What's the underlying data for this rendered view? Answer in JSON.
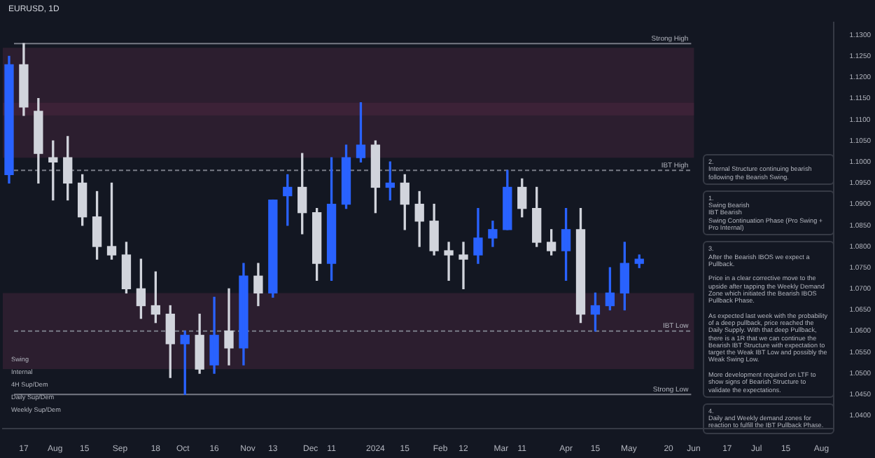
{
  "chart_data": {
    "type": "candlestick",
    "title": "EURUSD, 1D",
    "x": [
      "2023-07-10",
      "2023-07-17",
      "2023-07-24",
      "2023-07-31",
      "2023-08-07",
      "2023-08-14",
      "2023-08-21",
      "2023-08-28",
      "2023-09-04",
      "2023-09-11",
      "2023-09-18",
      "2023-09-25",
      "2023-10-02",
      "2023-10-09",
      "2023-10-16",
      "2023-10-23",
      "2023-10-30",
      "2023-11-06",
      "2023-11-13",
      "2023-11-20",
      "2023-11-27",
      "2023-12-04",
      "2023-12-11",
      "2023-12-18",
      "2023-12-25",
      "2024-01-01",
      "2024-01-08",
      "2024-01-15",
      "2024-01-22",
      "2024-01-29",
      "2024-02-05",
      "2024-02-12",
      "2024-02-19",
      "2024-02-26",
      "2024-03-04",
      "2024-03-11",
      "2024-03-18",
      "2024-03-25",
      "2024-04-01",
      "2024-04-08",
      "2024-04-15",
      "2024-04-22",
      "2024-04-29",
      "2024-05-06"
    ],
    "ohlc": [
      [
        1.097,
        1.125,
        1.095,
        1.123
      ],
      [
        1.123,
        1.128,
        1.111,
        1.113
      ],
      [
        1.112,
        1.115,
        1.095,
        1.102
      ],
      [
        1.101,
        1.105,
        1.091,
        1.1
      ],
      [
        1.101,
        1.106,
        1.091,
        1.095
      ],
      [
        1.095,
        1.097,
        1.085,
        1.087
      ],
      [
        1.087,
        1.093,
        1.077,
        1.08
      ],
      [
        1.08,
        1.095,
        1.077,
        1.078
      ],
      [
        1.078,
        1.081,
        1.069,
        1.07
      ],
      [
        1.07,
        1.077,
        1.063,
        1.066
      ],
      [
        1.066,
        1.074,
        1.062,
        1.064
      ],
      [
        1.064,
        1.066,
        1.049,
        1.057
      ],
      [
        1.057,
        1.06,
        1.045,
        1.059
      ],
      [
        1.059,
        1.064,
        1.05,
        1.051
      ],
      [
        1.052,
        1.068,
        1.05,
        1.059
      ],
      [
        1.06,
        1.07,
        1.052,
        1.056
      ],
      [
        1.056,
        1.076,
        1.052,
        1.073
      ],
      [
        1.073,
        1.076,
        1.066,
        1.069
      ],
      [
        1.069,
        1.091,
        1.068,
        1.091
      ],
      [
        1.092,
        1.097,
        1.085,
        1.094
      ],
      [
        1.094,
        1.102,
        1.083,
        1.088
      ],
      [
        1.088,
        1.089,
        1.072,
        1.076
      ],
      [
        1.076,
        1.101,
        1.072,
        1.09
      ],
      [
        1.09,
        1.104,
        1.089,
        1.101
      ],
      [
        1.101,
        1.114,
        1.1,
        1.104
      ],
      [
        1.104,
        1.105,
        1.088,
        1.094
      ],
      [
        1.094,
        1.1,
        1.091,
        1.095
      ],
      [
        1.095,
        1.097,
        1.084,
        1.09
      ],
      [
        1.09,
        1.093,
        1.08,
        1.086
      ],
      [
        1.086,
        1.09,
        1.078,
        1.079
      ],
      [
        1.079,
        1.081,
        1.072,
        1.078
      ],
      [
        1.078,
        1.081,
        1.07,
        1.077
      ],
      [
        1.078,
        1.089,
        1.076,
        1.082
      ],
      [
        1.082,
        1.086,
        1.08,
        1.084
      ],
      [
        1.084,
        1.098,
        1.084,
        1.094
      ],
      [
        1.094,
        1.096,
        1.087,
        1.089
      ],
      [
        1.089,
        1.094,
        1.08,
        1.081
      ],
      [
        1.081,
        1.084,
        1.078,
        1.079
      ],
      [
        1.079,
        1.089,
        1.072,
        1.084
      ],
      [
        1.084,
        1.089,
        1.062,
        1.064
      ],
      [
        1.064,
        1.069,
        1.06,
        1.066
      ],
      [
        1.066,
        1.075,
        1.065,
        1.069
      ],
      [
        1.069,
        1.081,
        1.065,
        1.076
      ],
      [
        1.076,
        1.078,
        1.075,
        1.077
      ]
    ],
    "colors": [
      "#2962ff",
      "#d1d4dc",
      "#d1d4dc",
      "#d1d4dc",
      "#d1d4dc",
      "#d1d4dc",
      "#d1d4dc",
      "#d1d4dc",
      "#d1d4dc",
      "#d1d4dc",
      "#d1d4dc",
      "#d1d4dc",
      "#2962ff",
      "#d1d4dc",
      "#2962ff",
      "#d1d4dc",
      "#2962ff",
      "#d1d4dc",
      "#2962ff",
      "#2962ff",
      "#d1d4dc",
      "#d1d4dc",
      "#2962ff",
      "#2962ff",
      "#2962ff",
      "#d1d4dc",
      "#2962ff",
      "#d1d4dc",
      "#d1d4dc",
      "#d1d4dc",
      "#d1d4dc",
      "#d1d4dc",
      "#2962ff",
      "#2962ff",
      "#2962ff",
      "#d1d4dc",
      "#d1d4dc",
      "#d1d4dc",
      "#2962ff",
      "#d1d4dc",
      "#2962ff",
      "#2962ff",
      "#2962ff",
      "#2962ff"
    ],
    "xlim": [
      "2023-07-07",
      "2024-08-07"
    ],
    "xticks": [
      {
        "value": "2023-07-17",
        "label": "17"
      },
      {
        "value": "2023-08-01",
        "label": "Aug"
      },
      {
        "value": "2023-08-15",
        "label": "15"
      },
      {
        "value": "2023-09-01",
        "label": "Sep"
      },
      {
        "value": "2023-09-18",
        "label": "18"
      },
      {
        "value": "2023-10-01",
        "label": "Oct"
      },
      {
        "value": "2023-10-16",
        "label": "16"
      },
      {
        "value": "2023-11-01",
        "label": "Nov"
      },
      {
        "value": "2023-11-13",
        "label": "13"
      },
      {
        "value": "2023-12-01",
        "label": "Dec"
      },
      {
        "value": "2023-12-11",
        "label": "11"
      },
      {
        "value": "2024-01-01",
        "label": "2024"
      },
      {
        "value": "2024-01-15",
        "label": "15"
      },
      {
        "value": "2024-02-01",
        "label": "Feb"
      },
      {
        "value": "2024-02-12",
        "label": "12"
      },
      {
        "value": "2024-03-01",
        "label": "Mar"
      },
      {
        "value": "2024-03-11",
        "label": "11"
      },
      {
        "value": "2024-04-01",
        "label": "Apr"
      },
      {
        "value": "2024-04-15",
        "label": "15"
      },
      {
        "value": "2024-05-01",
        "label": "May"
      },
      {
        "value": "2024-05-20",
        "label": "20"
      },
      {
        "value": "2024-06-01",
        "label": "Jun"
      },
      {
        "value": "2024-06-17",
        "label": "17"
      },
      {
        "value": "2024-07-01",
        "label": "Jul"
      },
      {
        "value": "2024-07-15",
        "label": "15"
      },
      {
        "value": "2024-08-01",
        "label": "Aug"
      }
    ],
    "ylim": [
      1.037,
      1.133
    ],
    "yticks": [
      {
        "value": 1.04,
        "label": "1.0400"
      },
      {
        "value": 1.045,
        "label": "1.0450"
      },
      {
        "value": 1.05,
        "label": "1.0500"
      },
      {
        "value": 1.055,
        "label": "1.0550"
      },
      {
        "value": 1.06,
        "label": "1.0600"
      },
      {
        "value": 1.065,
        "label": "1.0650"
      },
      {
        "value": 1.07,
        "label": "1.0700"
      },
      {
        "value": 1.075,
        "label": "1.0750"
      },
      {
        "value": 1.08,
        "label": "1.0800"
      },
      {
        "value": 1.085,
        "label": "1.0850"
      },
      {
        "value": 1.09,
        "label": "1.0900"
      },
      {
        "value": 1.095,
        "label": "1.0950"
      },
      {
        "value": 1.1,
        "label": "1.1000"
      },
      {
        "value": 1.105,
        "label": "1.1050"
      },
      {
        "value": 1.11,
        "label": "1.1100"
      },
      {
        "value": 1.115,
        "label": "1.1150"
      },
      {
        "value": 1.12,
        "label": "1.1200"
      },
      {
        "value": 1.125,
        "label": "1.1250"
      },
      {
        "value": 1.13,
        "label": "1.1300"
      }
    ],
    "ref_lines": [
      {
        "axis": "y",
        "value": 1.128,
        "label": "Strong High",
        "color": "#787b86"
      },
      {
        "axis": "y",
        "value": 1.098,
        "label": "IBT High",
        "color": "#787b86",
        "line_style": "dashed"
      },
      {
        "axis": "y",
        "value": 1.06,
        "label": "IBT Low",
        "color": "#787b86",
        "line_style": "dashed"
      },
      {
        "axis": "y",
        "value": 1.045,
        "label": "Strong Low",
        "color": "#787b86"
      }
    ],
    "bands": [
      {
        "axis": "y",
        "from": 1.111,
        "to": 1.127,
        "color": "#5b2a48"
      },
      {
        "axis": "y",
        "from": 1.101,
        "to": 1.114,
        "color": "#5b2a48"
      },
      {
        "axis": "y",
        "from": 1.051,
        "to": 1.069,
        "color": "#5b2a48"
      }
    ],
    "annotations": [
      "2.\nInternal Structure continuing bearish following the Bearish Swing.",
      "1.\nSwing Bearish\nIBT Bearish\nSwing Continuation Phase (Pro Swing + Pro Internal)",
      "3.\nAfter the Bearish IBOS we expect a Pullback.\n\nPrice in a clear corrective move to the upside after tapping the Weekly Demand Zone which initiated the Bearish IBOS Pullback Phase.\n\nAs expected last week with the probability of a deep pullback, price reached the Daily Supply. With that deep Pullback, there is a 1R that we can continue the Bearish IBT Structure with expectation to target the Weak IBT Low and possibly the Weak Swing Low.\n\nMore development required on LTF to show signs of Bearish Structure to validate the expectations.",
      "4.\nDaily and Weekly demand zones for reaction to fulfill the IBT Pullback Phase.",
      "Swing",
      "Internal",
      "4H Sup/Dem",
      "Daily Sup/Dem",
      "Weekly Sup/Dem"
    ],
    "grid": false,
    "legend": false
  }
}
